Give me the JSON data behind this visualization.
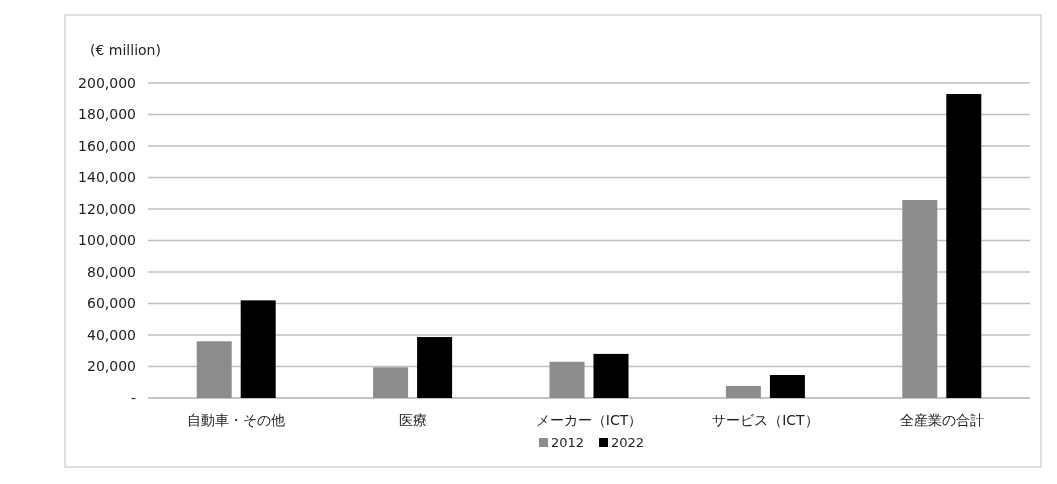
{
  "chart_data": {
    "type": "bar",
    "ylabel": "(€ million)",
    "categories": [
      "自動車・その他",
      "医療",
      "メーカー（ICT）",
      "サービス（ICT）",
      "全産業の合計"
    ],
    "series": [
      {
        "name": "2012",
        "color": "#8c8c8c",
        "values": [
          36000,
          19500,
          23000,
          7600,
          125700
        ]
      },
      {
        "name": "2022",
        "color": "#000000",
        "values": [
          62000,
          38700,
          28000,
          14600,
          193000
        ]
      }
    ],
    "ylim": [
      0,
      200000
    ],
    "yticks": [
      {
        "value": 0,
        "label": "-"
      },
      {
        "value": 20000,
        "label": "20,000"
      },
      {
        "value": 40000,
        "label": "40,000"
      },
      {
        "value": 60000,
        "label": "60,000"
      },
      {
        "value": 80000,
        "label": "80,000"
      },
      {
        "value": 100000,
        "label": "100,000"
      },
      {
        "value": 120000,
        "label": "120,000"
      },
      {
        "value": 140000,
        "label": "140,000"
      },
      {
        "value": 160000,
        "label": "160,000"
      },
      {
        "value": 180000,
        "label": "180,000"
      },
      {
        "value": 200000,
        "label": "200,000"
      }
    ],
    "grid": "y",
    "legend": "bottom"
  }
}
